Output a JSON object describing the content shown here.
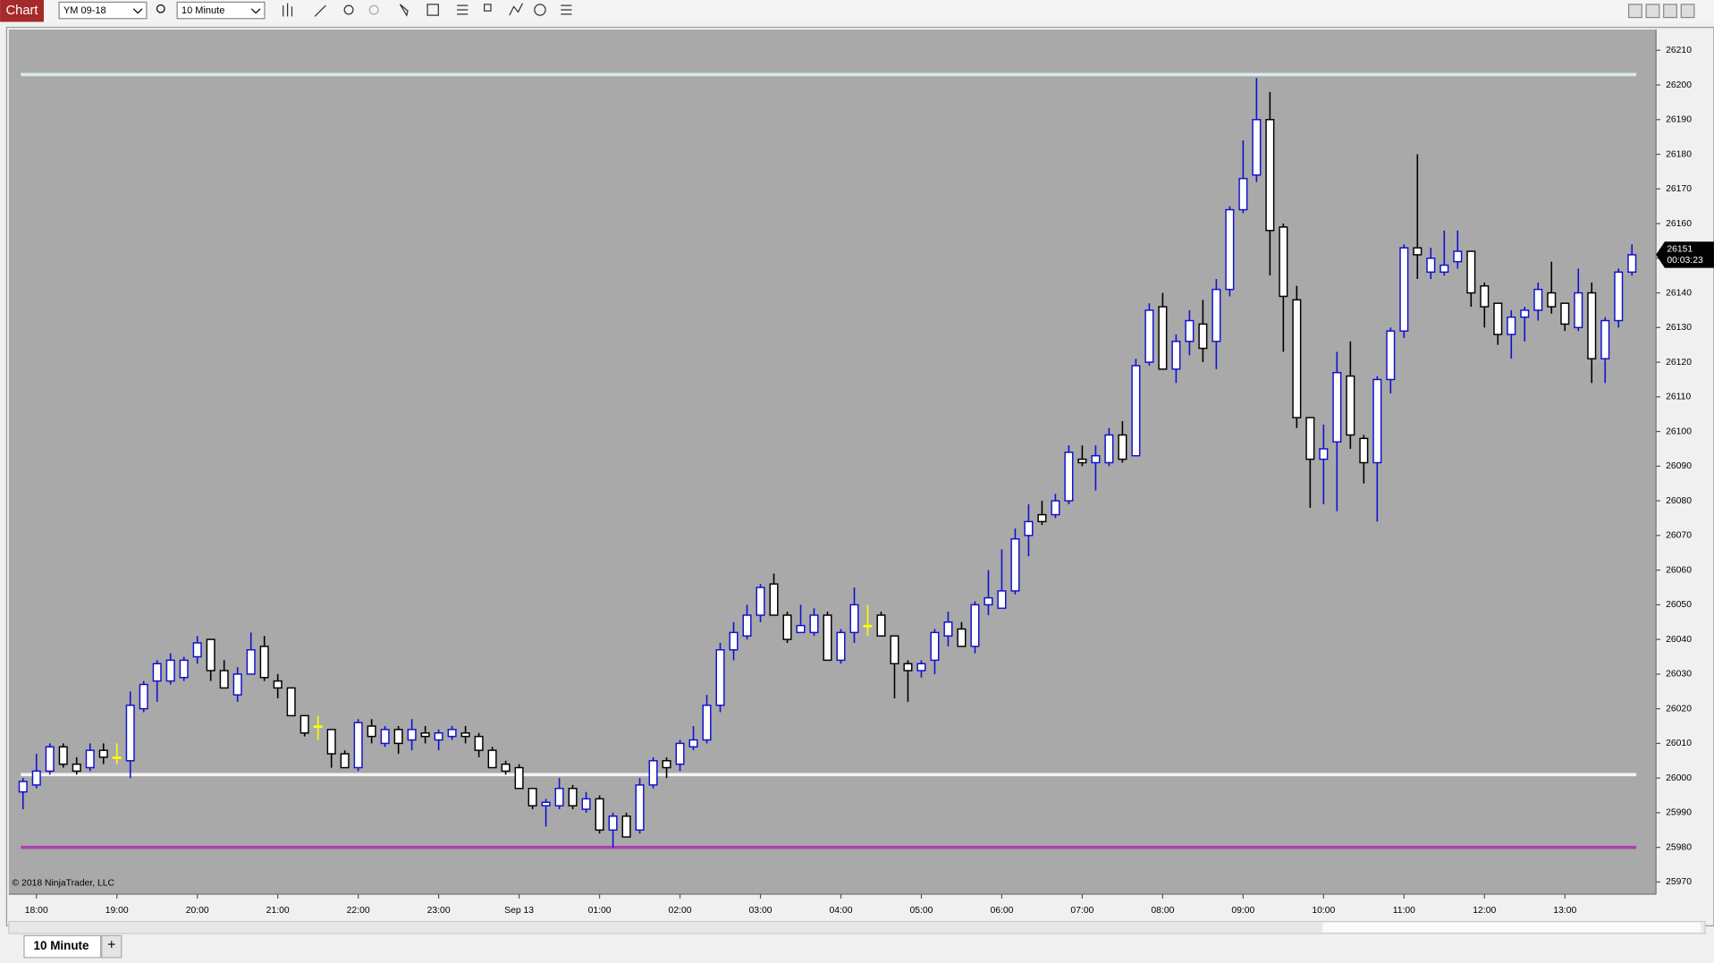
{
  "toolbar": {
    "tab": "Chart",
    "instrument": "YM 09-18",
    "interval": "10 Minute"
  },
  "chart_data": {
    "type": "candlestick",
    "categories": [
      null,
      "18:00",
      null,
      null,
      null,
      null,
      null,
      "19:00",
      null,
      null,
      null,
      null,
      null,
      "20:00",
      null,
      null,
      null,
      null,
      null,
      "21:00",
      null,
      null,
      null,
      null,
      null,
      "22:00",
      null,
      null,
      null,
      null,
      null,
      "23:00",
      null,
      null,
      null,
      null,
      null,
      "Sep 13",
      null,
      null,
      null,
      null,
      null,
      "01:00",
      null,
      null,
      null,
      null,
      null,
      "02:00",
      null,
      null,
      null,
      null,
      null,
      "03:00",
      null,
      null,
      null,
      null,
      null,
      "04:00",
      null,
      null,
      null,
      null,
      null,
      "05:00",
      null,
      null,
      null,
      null,
      null,
      "06:00",
      null,
      null,
      null,
      null,
      null,
      "07:00",
      null,
      null,
      null,
      null,
      null,
      "08:00",
      null,
      null,
      null,
      null,
      null,
      "09:00",
      null,
      null,
      null,
      null,
      null,
      "10:00",
      null,
      null,
      null,
      null,
      null,
      "11:00",
      null,
      null,
      null,
      null,
      null,
      "12:00",
      null,
      null,
      null,
      null,
      null,
      "13:00",
      null,
      null,
      null,
      null,
      null
    ],
    "open": [
      25996,
      25998,
      26002,
      26009,
      26004,
      26003,
      26008,
      26006,
      26005,
      26020,
      26028,
      26028,
      26029,
      26035,
      26040,
      26031,
      26024,
      26030,
      26038,
      26028,
      26026,
      26018,
      26015,
      26014,
      26007,
      26003,
      26015,
      26010,
      26014,
      26011,
      26013,
      26011,
      26012,
      26013,
      26012,
      26008,
      26004,
      26003,
      25997,
      25992,
      25992,
      25997,
      25991,
      25994,
      25985,
      25989,
      25985,
      25998,
      26005,
      26004,
      26009,
      26011,
      26021,
      26037,
      26041,
      26047,
      26056,
      26047,
      26042,
      26042,
      26047,
      26034,
      26042,
      26044,
      26047,
      26041,
      26033,
      26031,
      26034,
      26041,
      26043,
      26038,
      26050,
      26049,
      26054,
      26070,
      26076,
      26076,
      26080,
      26092,
      26091,
      26091,
      26099,
      26093,
      26120,
      26136,
      26118,
      26126,
      26131,
      26126,
      26141,
      26164,
      26174,
      26190,
      26159,
      26138,
      26104,
      26092,
      26097,
      26116,
      26098,
      26091,
      26115,
      26129,
      26153,
      26146,
      26146,
      26149,
      26152,
      26142,
      26137,
      26128,
      26133,
      26135,
      26140,
      26137,
      26130,
      26140,
      26121,
      26132,
      26146
    ],
    "high": [
      26000,
      26007,
      26010,
      26010,
      26006,
      26010,
      26010,
      26010,
      26025,
      26028,
      26034,
      26036,
      26035,
      26041,
      26040,
      26034,
      26032,
      26042,
      26041,
      26030,
      26026,
      26018,
      26018,
      26014,
      26008,
      26017,
      26017,
      26015,
      26015,
      26017,
      26015,
      26014,
      26015,
      26015,
      26013,
      26009,
      26005,
      26004,
      25997,
      25994,
      26000,
      25998,
      25996,
      25995,
      25990,
      25990,
      26000,
      26006,
      26006,
      26011,
      26015,
      26024,
      26039,
      26045,
      26050,
      26056,
      26059,
      26048,
      26050,
      26049,
      26048,
      26043,
      26055,
      26050,
      26048,
      26041,
      26034,
      26034,
      26043,
      26048,
      26045,
      26051,
      26060,
      26066,
      26072,
      26079,
      26080,
      26082,
      26096,
      26096,
      26096,
      26101,
      26103,
      26121,
      26137,
      26140,
      26128,
      26135,
      26138,
      26144,
      26165,
      26184,
      26202,
      26198,
      26160,
      26142,
      26104,
      26102,
      26123,
      26126,
      26099,
      26116,
      26130,
      26154,
      26180,
      26153,
      26158,
      26158,
      26152,
      26143,
      26137,
      26135,
      26136,
      26143,
      26149,
      26137,
      26147,
      26143,
      26133,
      26147,
      26154
    ],
    "low": [
      25991,
      25997,
      26001,
      26003,
      26001,
      26002,
      26004,
      26004,
      26000,
      26019,
      26022,
      26027,
      26028,
      26033,
      26028,
      26026,
      26022,
      26030,
      26028,
      26023,
      26018,
      26012,
      26011,
      26003,
      26003,
      26002,
      26010,
      26009,
      26007,
      26008,
      26010,
      26008,
      26011,
      26010,
      26006,
      26003,
      26001,
      25997,
      25991,
      25986,
      25991,
      25991,
      25990,
      25984,
      25980,
      25983,
      25984,
      25997,
      26000,
      26002,
      26008,
      26010,
      26019,
      26034,
      26040,
      26045,
      26047,
      26039,
      26042,
      26041,
      26034,
      26033,
      26039,
      26041,
      26041,
      26023,
      26022,
      26029,
      26030,
      26038,
      26038,
      26036,
      26047,
      26049,
      26053,
      26064,
      26073,
      26075,
      26079,
      26090,
      26083,
      26090,
      26091,
      26093,
      26119,
      26118,
      26114,
      26122,
      26120,
      26118,
      26139,
      26163,
      26172,
      26145,
      26123,
      26101,
      26078,
      26079,
      26077,
      26095,
      26085,
      26074,
      26111,
      26127,
      26144,
      26144,
      26145,
      26147,
      26136,
      26130,
      26125,
      26121,
      26126,
      26132,
      26134,
      26129,
      26129,
      26114,
      26114,
      26130,
      26145
    ],
    "close": [
      25999,
      26002,
      26009,
      26004,
      26002,
      26008,
      26006,
      26006,
      26021,
      26027,
      26033,
      26034,
      26034,
      26039,
      26031,
      26026,
      26030,
      26037,
      26029,
      26026,
      26018,
      26013,
      26015,
      26007,
      26003,
      26016,
      26012,
      26014,
      26010,
      26014,
      26012,
      26013,
      26014,
      26012,
      26008,
      26003,
      26002,
      25997,
      25992,
      25993,
      25997,
      25992,
      25994,
      25985,
      25989,
      25983,
      25998,
      26005,
      26003,
      26010,
      26011,
      26021,
      26037,
      26042,
      26047,
      26055,
      26047,
      26040,
      26044,
      26047,
      26034,
      26042,
      26050,
      26044,
      26041,
      26033,
      26031,
      26033,
      26042,
      26045,
      26038,
      26050,
      26052,
      26054,
      26069,
      26074,
      26074,
      26080,
      26094,
      26091,
      26093,
      26099,
      26092,
      26119,
      26135,
      26118,
      26126,
      26132,
      26124,
      26141,
      26164,
      26173,
      26190,
      26158,
      26139,
      26104,
      26092,
      26095,
      26117,
      26099,
      26091,
      26115,
      26129,
      26153,
      26151,
      26150,
      26148,
      26152,
      26140,
      26136,
      26128,
      26133,
      26135,
      26141,
      26136,
      26131,
      26140,
      26121,
      26132,
      26146,
      26151
    ],
    "ylim": [
      25966.5,
      26216
    ],
    "yticks": [
      25970,
      25980,
      25990,
      26000,
      26010,
      26020,
      26030,
      26040,
      26050,
      26060,
      26070,
      26080,
      26090,
      26100,
      26110,
      26120,
      26130,
      26140,
      26150,
      26160,
      26170,
      26180,
      26190,
      26200,
      26210
    ],
    "up_color": "#1010d0",
    "down_color": "#000000",
    "body_color": "#ffffff",
    "doji_color": "#ffff00",
    "lines": [
      {
        "value": 26203,
        "color": "#d6ece8"
      },
      {
        "value": 26001,
        "color": "#f4f4f4"
      },
      {
        "value": 25980,
        "color": "#b040b0"
      }
    ],
    "last_price": 26151,
    "timer": "00:03:23",
    "copyright": "© 2018 NinjaTrader, LLC"
  },
  "tabs": [
    "10 Minute",
    "+"
  ]
}
